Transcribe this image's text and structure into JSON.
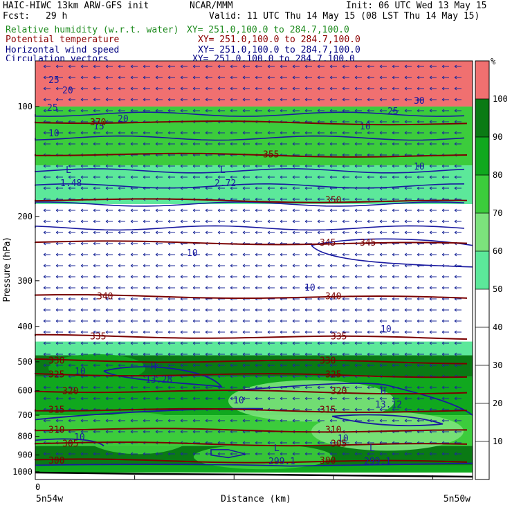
{
  "header": {
    "model": "HAIC-HIWC 13km ARW-GFS init",
    "org": "NCAR/MMM",
    "init": "Init: 06 UTC Wed 13 May 15",
    "fcst_label": "Fcst:",
    "fcst_value": "29 h",
    "valid": "Valid: 11 UTC Thu 14 May 15 (08 LST Thu 14 May 15)",
    "fields": [
      {
        "name": "Relative humidity (w.r.t. water)",
        "xy": "XY= 251.0,100.0 to 284.7,100.0",
        "color": "#1c8a1c"
      },
      {
        "name": "Potential temperature",
        "xy": "XY= 251.0,100.0 to 284.7,100.0",
        "color": "#8b0000"
      },
      {
        "name": "Horizontal wind speed",
        "xy": "XY= 251.0,100.0 to 284.7,100.0",
        "color": "#000080"
      },
      {
        "name": "Circulation vectors",
        "xy": "XY= 251.0,100.0 to 284.7,100.0",
        "color": "#000080"
      }
    ]
  },
  "chart_data": {
    "type": "heatmap",
    "ylabel": "Pressure (hPa)",
    "xlabel": "Distance (km)",
    "x_start_tick": "0",
    "x_left_label": "5n54w",
    "x_right_label": "5n50w",
    "y_ticks": [
      100,
      200,
      300,
      400,
      500,
      600,
      700,
      800,
      900,
      1000
    ],
    "y_log_scale": true,
    "ylim": [
      1050,
      75
    ],
    "colorbar": {
      "unit": "%",
      "ticks": [
        10,
        20,
        30,
        40,
        50,
        60,
        70,
        80,
        90,
        100
      ],
      "bins": [
        {
          "from": 50,
          "to": 60,
          "color": "#5ce89a"
        },
        {
          "from": 60,
          "to": 70,
          "color": "#7ce27c"
        },
        {
          "from": 70,
          "to": 80,
          "color": "#3ccc3c"
        },
        {
          "from": 80,
          "to": 90,
          "color": "#10a81e"
        },
        {
          "from": 90,
          "to": 100,
          "color": "#0a7a14"
        },
        {
          "from": 100,
          "to": 110,
          "color": "#f07070"
        }
      ]
    },
    "rh_bands": [
      {
        "p_top": 75,
        "p_bot": 100,
        "rh": 105
      },
      {
        "p_top": 100,
        "p_bot": 145,
        "rh": 75
      },
      {
        "p_top": 145,
        "p_bot": 185,
        "rh": 55
      },
      {
        "p_top": 185,
        "p_bot": 245,
        "rh": 30
      },
      {
        "p_top": 245,
        "p_bot": 305,
        "rh": 20
      },
      {
        "p_top": 305,
        "p_bot": 440,
        "rh": 30
      },
      {
        "p_top": 440,
        "p_bot": 480,
        "rh": 55
      },
      {
        "p_top": 480,
        "p_bot": 550,
        "rh": 92
      },
      {
        "p_top": 550,
        "p_bot": 700,
        "rh": 85
      },
      {
        "p_top": 700,
        "p_bot": 850,
        "rh": 78
      },
      {
        "p_top": 850,
        "p_bot": 960,
        "rh": 92
      },
      {
        "p_top": 960,
        "p_bot": 1005,
        "rh": 85
      }
    ],
    "theta_isolines": [
      {
        "label": "370",
        "p": 110
      },
      {
        "label": "355",
        "p": 135
      },
      {
        "label": "350",
        "p": 180
      },
      {
        "label": "345",
        "p": 235
      },
      {
        "label": "340",
        "p": 330
      },
      {
        "label": "335",
        "p": 425
      },
      {
        "label": "330",
        "p": 495
      },
      {
        "label": "325",
        "p": 540
      },
      {
        "label": "320",
        "p": 600
      },
      {
        "label": "315",
        "p": 675
      },
      {
        "label": "310",
        "p": 765
      },
      {
        "label": "305",
        "p": 835
      },
      {
        "label": "300",
        "p": 930
      }
    ],
    "wind_speed_labels": [
      "25",
      "20",
      "15",
      "10",
      "30"
    ],
    "extrema": [
      {
        "kind": "L",
        "value": "1.48"
      },
      {
        "kind": "L",
        "value": "2.72"
      },
      {
        "kind": "H",
        "value": "13.28"
      },
      {
        "kind": "H",
        "value": "13.12"
      },
      {
        "kind": "L",
        "value": "299.1"
      },
      {
        "kind": "L",
        "value": "299.1"
      }
    ],
    "grid": false
  }
}
